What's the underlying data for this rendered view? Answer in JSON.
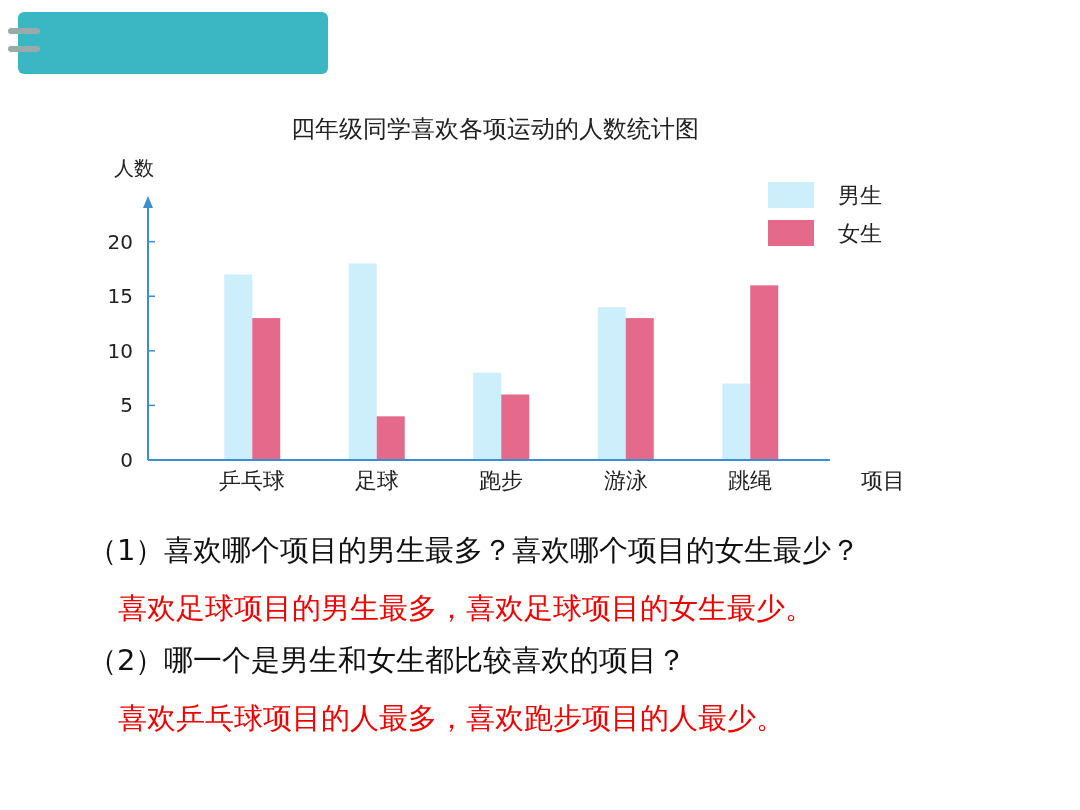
{
  "chart_data": {
    "type": "bar",
    "title": "四年级同学喜欢各项运动的人数统计图",
    "ylabel": "人数",
    "xlabel": "项目",
    "categories": [
      "乒乓球",
      "足球",
      "跑步",
      "游泳",
      "跳绳"
    ],
    "series": [
      {
        "name": "男生",
        "color": "#cdeefb",
        "values": [
          17,
          18,
          8,
          14,
          7
        ]
      },
      {
        "name": "女生",
        "color": "#e5698a",
        "values": [
          13,
          4,
          6,
          13,
          16
        ]
      }
    ],
    "ylim": [
      0,
      24
    ],
    "yticks": [
      0,
      5,
      10,
      15,
      20
    ],
    "grid": false,
    "legend": "top right",
    "annotations": [
      "（1）喜欢哪个项目的男生最多？喜欢哪个项目的女生最少？",
      "喜欢足球项目的男生最多，喜欢足球项目的女生最少。",
      "（2）哪一个是男生和女生都比较喜欢的项目？",
      "喜欢乒乓球项目的人最多，喜欢跑步项目的人最少。"
    ]
  }
}
